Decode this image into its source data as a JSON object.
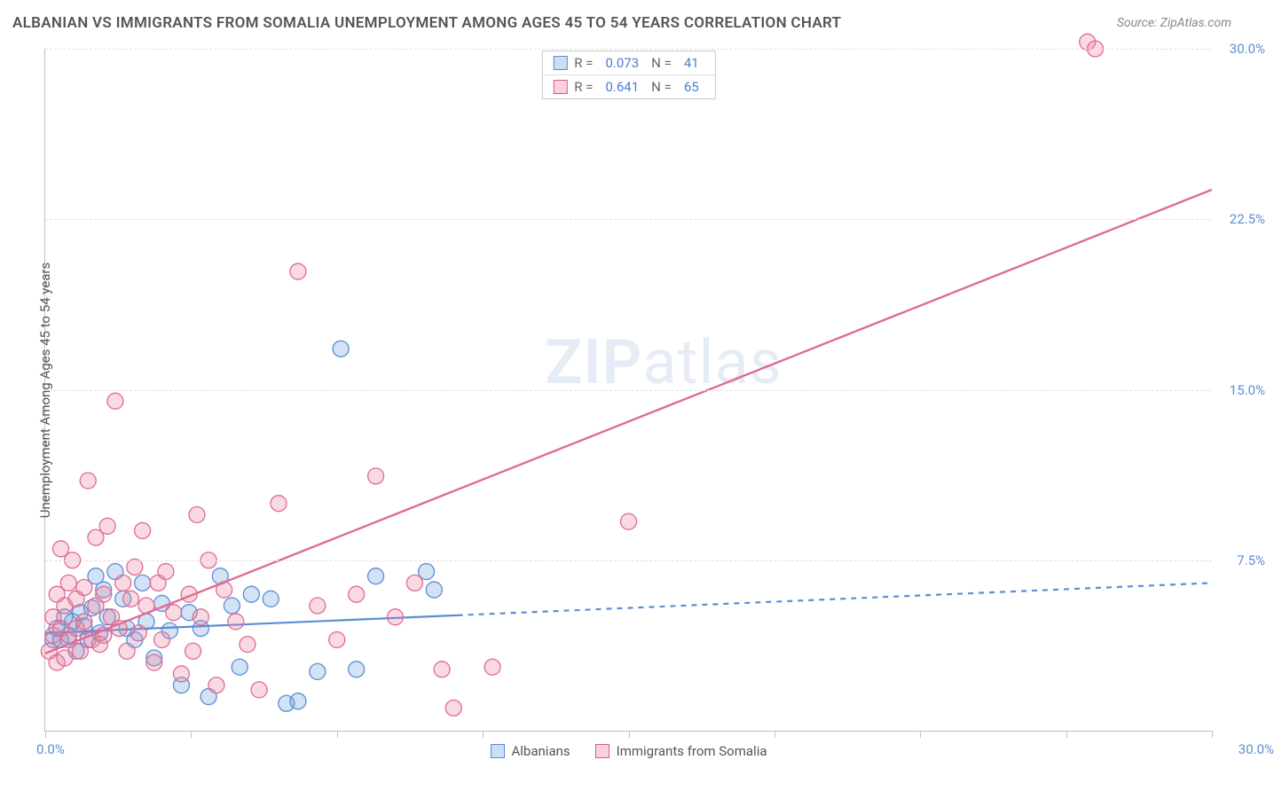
{
  "title": "ALBANIAN VS IMMIGRANTS FROM SOMALIA UNEMPLOYMENT AMONG AGES 45 TO 54 YEARS CORRELATION CHART",
  "source": "Source: ZipAtlas.com",
  "watermark_a": "ZIP",
  "watermark_b": "atlas",
  "ylabel": "Unemployment Among Ages 45 to 54 years",
  "chart": {
    "type": "scatter-with-regression",
    "background": "#ffffff",
    "grid_color": "#e0e0e0",
    "axis_color": "#c0c0c0",
    "xlim": [
      0,
      30
    ],
    "ylim": [
      0,
      30
    ],
    "xticks": [
      0,
      3.75,
      7.5,
      11.25,
      15,
      18.75,
      22.5,
      26.25,
      30
    ],
    "yticks": [
      7.5,
      15.0,
      22.5,
      30.0
    ],
    "ytick_labels": [
      "7.5%",
      "15.0%",
      "22.5%",
      "30.0%"
    ],
    "x_min_label": "0.0%",
    "x_max_label": "30.0%",
    "label_color": "#5b8dd6",
    "series": [
      {
        "name": "Albanians",
        "color_fill": "rgba(110,160,220,0.30)",
        "color_stroke": "#5b8dd6",
        "marker_r": 9,
        "R": "0.073",
        "N": "41",
        "line": {
          "x1": 0,
          "y1": 4.3,
          "x2": 30,
          "y2": 6.5,
          "solid_until_x": 10.6,
          "dash": "6,6",
          "width": 2.2
        },
        "points": [
          [
            0.2,
            4.0
          ],
          [
            0.3,
            4.5
          ],
          [
            0.4,
            4.0
          ],
          [
            0.5,
            5.0
          ],
          [
            0.6,
            4.2
          ],
          [
            0.7,
            4.8
          ],
          [
            0.8,
            3.5
          ],
          [
            0.9,
            5.2
          ],
          [
            1.0,
            4.6
          ],
          [
            1.1,
            4.0
          ],
          [
            1.2,
            5.4
          ],
          [
            1.3,
            6.8
          ],
          [
            1.4,
            4.3
          ],
          [
            1.5,
            6.2
          ],
          [
            1.6,
            5.0
          ],
          [
            1.8,
            7.0
          ],
          [
            2.0,
            5.8
          ],
          [
            2.1,
            4.5
          ],
          [
            2.3,
            4.0
          ],
          [
            2.5,
            6.5
          ],
          [
            2.6,
            4.8
          ],
          [
            2.8,
            3.2
          ],
          [
            3.0,
            5.6
          ],
          [
            3.2,
            4.4
          ],
          [
            3.5,
            2.0
          ],
          [
            3.7,
            5.2
          ],
          [
            4.0,
            4.5
          ],
          [
            4.2,
            1.5
          ],
          [
            4.5,
            6.8
          ],
          [
            4.8,
            5.5
          ],
          [
            5.0,
            2.8
          ],
          [
            5.3,
            6.0
          ],
          [
            5.8,
            5.8
          ],
          [
            6.2,
            1.2
          ],
          [
            6.5,
            1.3
          ],
          [
            7.0,
            2.6
          ],
          [
            7.6,
            16.8
          ],
          [
            8.0,
            2.7
          ],
          [
            8.5,
            6.8
          ],
          [
            9.8,
            7.0
          ],
          [
            10.0,
            6.2
          ]
        ]
      },
      {
        "name": "Immigrants from Somalia",
        "color_fill": "rgba(235,130,160,0.30)",
        "color_stroke": "#e06b94",
        "marker_r": 9,
        "R": "0.641",
        "N": "65",
        "line": {
          "x1": 0,
          "y1": 3.4,
          "x2": 30,
          "y2": 23.8,
          "solid_until_x": 30,
          "dash": "",
          "width": 2.4
        },
        "points": [
          [
            0.1,
            3.5
          ],
          [
            0.2,
            4.2
          ],
          [
            0.2,
            5.0
          ],
          [
            0.3,
            3.0
          ],
          [
            0.3,
            6.0
          ],
          [
            0.4,
            4.5
          ],
          [
            0.4,
            8.0
          ],
          [
            0.5,
            3.2
          ],
          [
            0.5,
            5.5
          ],
          [
            0.6,
            4.0
          ],
          [
            0.6,
            6.5
          ],
          [
            0.7,
            7.5
          ],
          [
            0.8,
            4.5
          ],
          [
            0.8,
            5.8
          ],
          [
            0.9,
            3.5
          ],
          [
            1.0,
            6.3
          ],
          [
            1.0,
            4.8
          ],
          [
            1.1,
            11.0
          ],
          [
            1.2,
            4.0
          ],
          [
            1.3,
            5.5
          ],
          [
            1.3,
            8.5
          ],
          [
            1.4,
            3.8
          ],
          [
            1.5,
            6.0
          ],
          [
            1.5,
            4.2
          ],
          [
            1.6,
            9.0
          ],
          [
            1.7,
            5.0
          ],
          [
            1.8,
            14.5
          ],
          [
            1.9,
            4.5
          ],
          [
            2.0,
            6.5
          ],
          [
            2.1,
            3.5
          ],
          [
            2.2,
            5.8
          ],
          [
            2.3,
            7.2
          ],
          [
            2.4,
            4.3
          ],
          [
            2.5,
            8.8
          ],
          [
            2.6,
            5.5
          ],
          [
            2.8,
            3.0
          ],
          [
            2.9,
            6.5
          ],
          [
            3.0,
            4.0
          ],
          [
            3.1,
            7.0
          ],
          [
            3.3,
            5.2
          ],
          [
            3.5,
            2.5
          ],
          [
            3.7,
            6.0
          ],
          [
            3.8,
            3.5
          ],
          [
            3.9,
            9.5
          ],
          [
            4.0,
            5.0
          ],
          [
            4.2,
            7.5
          ],
          [
            4.4,
            2.0
          ],
          [
            4.6,
            6.2
          ],
          [
            4.9,
            4.8
          ],
          [
            5.2,
            3.8
          ],
          [
            5.5,
            1.8
          ],
          [
            6.0,
            10.0
          ],
          [
            6.5,
            20.2
          ],
          [
            7.0,
            5.5
          ],
          [
            7.5,
            4.0
          ],
          [
            8.0,
            6.0
          ],
          [
            8.5,
            11.2
          ],
          [
            9.0,
            5.0
          ],
          [
            9.5,
            6.5
          ],
          [
            10.2,
            2.7
          ],
          [
            10.5,
            1.0
          ],
          [
            11.5,
            2.8
          ],
          [
            15.0,
            9.2
          ],
          [
            26.8,
            30.3
          ],
          [
            27.0,
            30.0
          ]
        ]
      }
    ]
  },
  "stats_legend": {
    "rows": [
      {
        "swatch": "blue",
        "R_label": "R =",
        "R": "0.073",
        "N_label": "N =",
        "N": "41"
      },
      {
        "swatch": "pink",
        "R_label": "R =",
        "R": "0.641",
        "N_label": "N =",
        "N": "65"
      }
    ]
  },
  "bottom_legend": {
    "items": [
      {
        "swatch": "blue",
        "label": "Albanians"
      },
      {
        "swatch": "pink",
        "label": "Immigrants from Somalia"
      }
    ]
  }
}
